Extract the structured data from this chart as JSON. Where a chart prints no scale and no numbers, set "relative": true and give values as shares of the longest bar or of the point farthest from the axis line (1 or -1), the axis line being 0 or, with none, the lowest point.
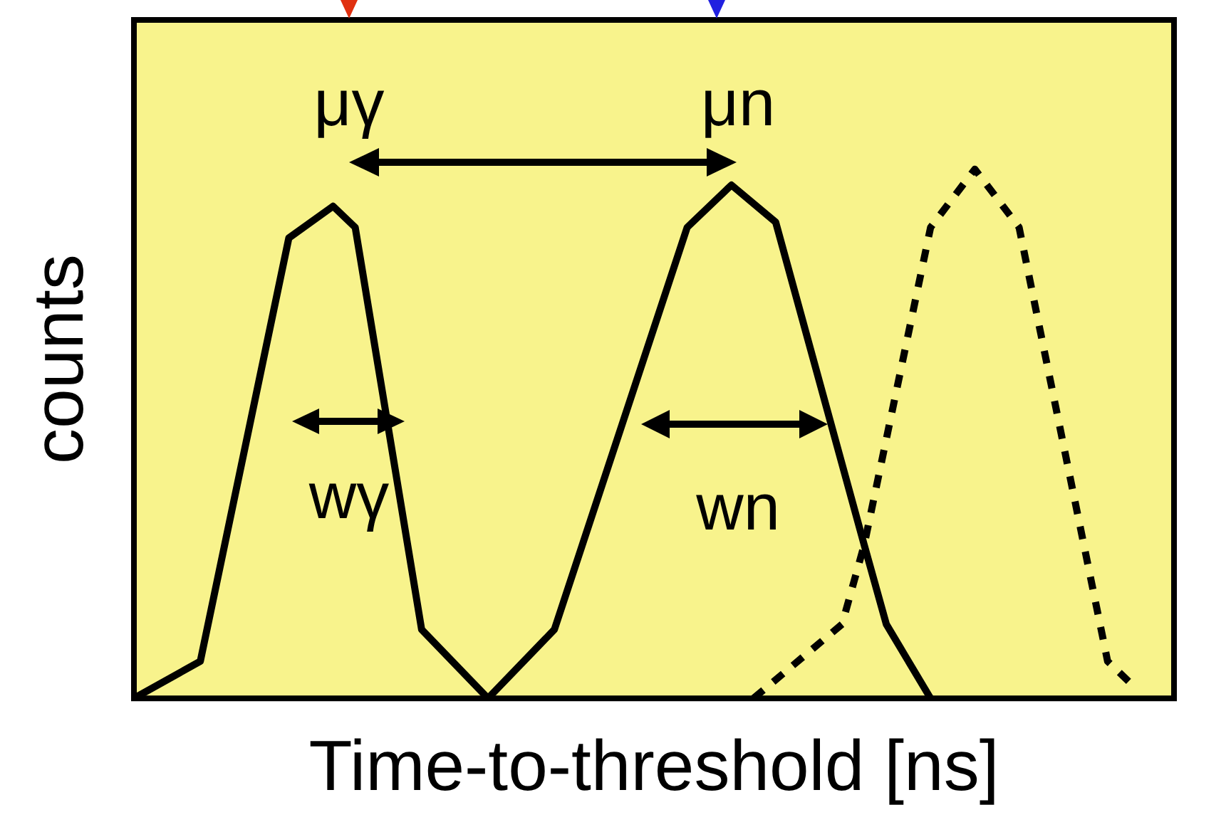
{
  "chart_data": {
    "type": "line",
    "relative": true,
    "xlabel": "Time-to-threshold [ns]",
    "ylabel": "counts",
    "marker": "none",
    "legend": false,
    "grid": false,
    "categories": [
      null,
      null,
      null,
      null,
      null,
      null,
      null,
      null,
      null,
      null,
      null,
      null,
      null,
      null,
      null,
      null,
      null,
      null,
      null,
      null,
      null,
      null,
      null,
      null,
      null,
      null,
      null,
      null,
      null,
      null,
      null,
      null,
      null,
      null,
      null,
      null,
      null,
      null,
      null,
      null,
      null,
      null,
      null,
      null,
      null,
      null,
      null,
      null
    ],
    "series": [
      {
        "color": "#000000",
        "line_style": "solid",
        "values": [
          0,
          null,
          null,
          0.07,
          null,
          null,
          null,
          0.87,
          null,
          0.93,
          0.89,
          null,
          null,
          0.13,
          null,
          null,
          0,
          null,
          null,
          0.13,
          null,
          null,
          null,
          null,
          null,
          0.89,
          null,
          0.97,
          null,
          0.9,
          null,
          null,
          null,
          0.29,
          0.14,
          null,
          0,
          null,
          null,
          null,
          null,
          null,
          null,
          null,
          null,
          null,
          null,
          null
        ]
      },
      {
        "color": "#000000",
        "line_style": "dotted",
        "values": [
          null,
          null,
          null,
          null,
          null,
          null,
          null,
          null,
          null,
          null,
          null,
          null,
          null,
          null,
          null,
          null,
          null,
          null,
          null,
          null,
          null,
          null,
          null,
          null,
          null,
          null,
          null,
          null,
          0,
          null,
          null,
          null,
          0.14,
          0.29,
          null,
          null,
          0.89,
          null,
          1,
          null,
          0.89,
          null,
          null,
          null,
          0.07,
          0.03,
          null,
          null
        ]
      }
    ],
    "annotations": [
      "μγ",
      "μn",
      "wγ",
      "wn"
    ]
  }
}
